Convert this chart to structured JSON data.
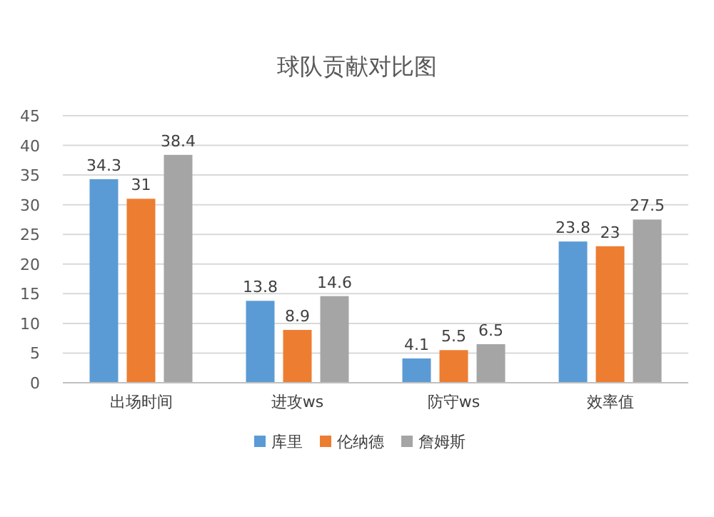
{
  "chart_data": {
    "type": "bar",
    "title": "球队贡献对比图",
    "categories": [
      "出场时间",
      "进攻ws",
      "防守ws",
      "效率值"
    ],
    "series": [
      {
        "name": "库里",
        "color": "#5b9bd5",
        "values": [
          34.3,
          13.8,
          4.1,
          23.8
        ]
      },
      {
        "name": "伦纳德",
        "color": "#ed7d31",
        "values": [
          31,
          8.9,
          5.5,
          23
        ]
      },
      {
        "name": "詹姆斯",
        "color": "#a5a5a5",
        "values": [
          38.4,
          14.6,
          6.5,
          27.5
        ]
      }
    ],
    "ylim": [
      0,
      45
    ],
    "yticks": [
      0,
      5,
      10,
      15,
      20,
      25,
      30,
      35,
      40,
      45
    ],
    "grid": "y",
    "legend": "bottom",
    "data_labels": true
  }
}
